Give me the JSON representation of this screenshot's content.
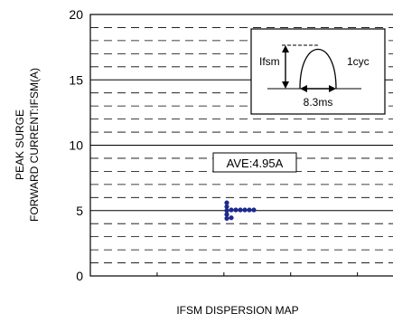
{
  "chart_data": {
    "type": "scatter",
    "title": "",
    "xlabel": "IFSM DISPERSION MAP",
    "ylabel_line1": "PEAK SURGE",
    "ylabel_line2": "FORWARD CURRENT:IFSM(A)",
    "ylim": [
      0,
      20
    ],
    "yticks": [
      0,
      5,
      10,
      15,
      20
    ],
    "grid": {
      "major_step": 5,
      "minor_step": 1
    },
    "x_tick_count": 5,
    "points": [
      {
        "x": 0.06,
        "y": 5.6
      },
      {
        "x": 0.06,
        "y": 5.3
      },
      {
        "x": 0.06,
        "y": 5.0
      },
      {
        "x": 0.06,
        "y": 4.7
      },
      {
        "x": 0.06,
        "y": 4.4
      },
      {
        "x": 0.07,
        "y": 5.05
      },
      {
        "x": 0.08,
        "y": 5.05
      },
      {
        "x": 0.09,
        "y": 5.05
      },
      {
        "x": 0.1,
        "y": 5.05
      },
      {
        "x": 0.11,
        "y": 5.05
      },
      {
        "x": 0.12,
        "y": 5.05
      },
      {
        "x": 0.07,
        "y": 4.45
      }
    ],
    "average_label": "AVE:4.95A",
    "inset": {
      "ifsm_label": "Ifsm",
      "cycle_label": "1cyc",
      "time_label": "8.3ms"
    },
    "point_color": "#1c2a8c"
  }
}
